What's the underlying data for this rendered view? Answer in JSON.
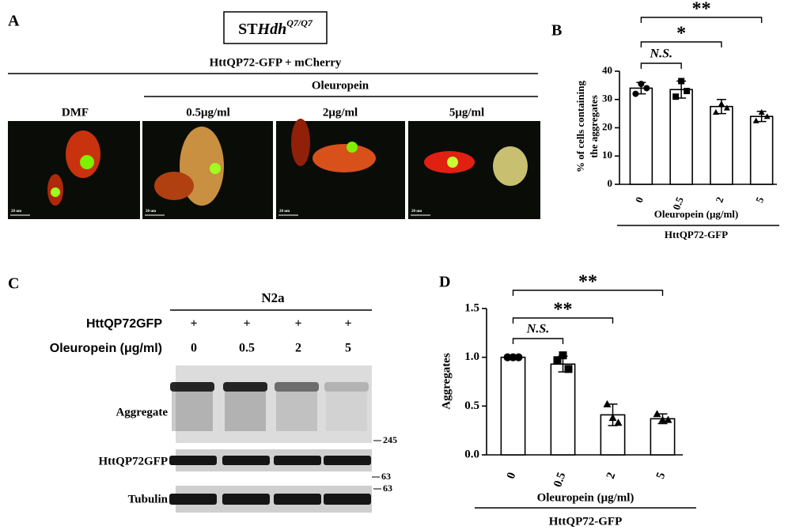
{
  "panels": {
    "A": {
      "letter": "A",
      "cell_line": {
        "prefix": "ST",
        "gene": "Hdh",
        "genotype": "Q7/Q7"
      },
      "construct": "HttQP72-GFP + mCherry",
      "treatment": "Oleuropein",
      "conditions": [
        "DMF",
        "0.5μg/ml",
        "2μg/ml",
        "5μg/ml"
      ],
      "scale_bar": "20 um"
    },
    "C": {
      "letter": "C",
      "cell_line": "N2a",
      "row_labels": [
        "HttQP72GFP",
        "Oleuropein (μg/ml)"
      ],
      "transfection": [
        "+",
        "+",
        "+",
        "+"
      ],
      "doses": [
        "0",
        "0.5",
        "2",
        "5"
      ],
      "blots": [
        "Aggregate",
        "HttQP72GFP",
        "Tubulin"
      ],
      "markers": [
        "245",
        "63",
        "63"
      ]
    }
  },
  "chart_data": [
    {
      "type": "bar",
      "letter": "B",
      "y_label": [
        "% of cells containing",
        "the aggregates"
      ],
      "x_label": "Oleuropein (μg/ml)",
      "group_label": "HttQP72-GFP",
      "categories": [
        "0",
        "0.5",
        "2",
        "5"
      ],
      "values": [
        34,
        33.5,
        27.5,
        24
      ],
      "errors": [
        2,
        3,
        2.5,
        1.8
      ],
      "points": [
        [
          32,
          35.5,
          34
        ],
        [
          31,
          36.5,
          33
        ],
        [
          25.5,
          28.5,
          27
        ],
        [
          22.5,
          25.5,
          24
        ]
      ],
      "annotations": [
        "N.S.",
        "*",
        "**"
      ],
      "color": "#ffffff",
      "ylim": [
        0,
        40
      ],
      "yticks": [
        0,
        10,
        20,
        30,
        40
      ]
    },
    {
      "type": "bar",
      "letter": "D",
      "y_label": [
        "Aggregates"
      ],
      "x_label": "Oleuropein (μg/ml)",
      "group_label": "HttQP72-GFP",
      "categories": [
        "0",
        "0.5",
        "2",
        "5"
      ],
      "values": [
        1.0,
        0.93,
        0.41,
        0.37
      ],
      "errors": [
        0,
        0.08,
        0.11,
        0.05
      ],
      "points": [
        [
          1.0,
          1.0,
          1.0
        ],
        [
          0.97,
          1.02,
          0.88
        ],
        [
          0.52,
          0.38,
          0.33
        ],
        [
          0.42,
          0.36,
          0.36
        ]
      ],
      "annotations": [
        "N.S.",
        "**",
        "**"
      ],
      "color": "#ffffff",
      "ylim": [
        0,
        1.5
      ],
      "yticks": [
        {
          "value": 0,
          "label": "0.0"
        },
        0.5,
        {
          "value": 1,
          "label": "1.0"
        },
        1.5
      ]
    }
  ]
}
